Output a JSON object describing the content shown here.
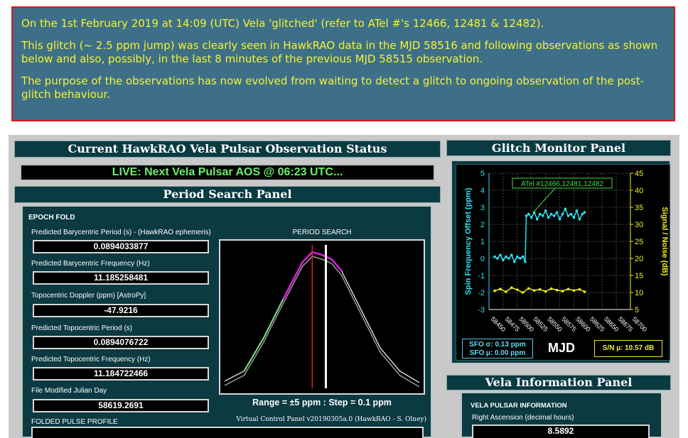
{
  "notice": {
    "line1": "On the 1st February 2019 at 14:09 (UTC) Vela 'glitched' (refer to ATel #'s 12466, 12481 & 12482).",
    "line2": "This glitch (~ 2.5 ppm jump) was clearly seen in HawkRAO data in the MJD 58516 and following observations as shown below and also, possibly, in the last 8 minutes of the previous MJD 58515 observation.",
    "line3": "The purpose of the observations has now evolved from waiting to detect a glitch to ongoing observation of the post-glitch behaviour."
  },
  "status": {
    "title": "Current HawkRAO Vela Pulsar Observation Status",
    "live": "LIVE: Next Vela Pulsar AOS @ 06:23 UTC..."
  },
  "period_panel": {
    "title": "Period Search Panel",
    "epoch_fold": "EPOCH FOLD",
    "fields": [
      {
        "label": "Predicted Barycentric Period (s) - (HawkRAO ephemeris)",
        "value": "0.0894033877"
      },
      {
        "label": "Predicted Barycentric Frequency (Hz)",
        "value": "11.185258481"
      },
      {
        "label": "Topocentric Doppler (ppm) [AstroPy]",
        "value": "-47.9216"
      },
      {
        "label": "Predicted Topocentric Period (s)",
        "value": "0.0894076722"
      },
      {
        "label": "Predicted Topocentric Frequency (Hz)",
        "value": "11.184722466"
      },
      {
        "label": "File Modified Julian Day",
        "value": "58619.2691"
      }
    ],
    "period_search_title": "PERIOD SEARCH",
    "range_text": "Range = ±5 ppm : Step = 0.1 ppm",
    "folded_pulse_profile": "FOLDED PULSE PROFILE",
    "vcp_credit": "Virtual Control Panel v20190305a.0 (HawkRAO - S. Olney)"
  },
  "glitch_panel": {
    "title": "Glitch Monitor Panel",
    "annotation": "ATel #12466,12481,12482",
    "sfo_sigma": "SFO σ: 0.13 ppm",
    "sfo_mu": "SFO µ: 0.00 ppm",
    "xlabel": "MJD",
    "sn_mu": "S/N µ: 10.57 dB"
  },
  "chart_data": {
    "type": "scatter",
    "xlabel": "MJD",
    "ylabel": "Spin Frequency Offset (ppm)",
    "y2label": "Signal / Noise (dB)",
    "xlim": [
      58450,
      58700
    ],
    "ylim": [
      -3,
      5
    ],
    "y2lim": [
      5,
      45
    ],
    "x_ticks": [
      58450,
      58475,
      58500,
      58525,
      58550,
      58575,
      58600,
      58625,
      58650,
      58675,
      58700
    ],
    "y_ticks": [
      -3,
      -2,
      -1,
      0,
      1,
      2,
      3,
      4,
      5
    ],
    "y2_ticks": [
      5,
      10,
      15,
      20,
      25,
      30,
      35,
      40,
      45
    ],
    "grid": true,
    "glitch_mjd": 58515.6,
    "series": [
      {
        "color": "#30e0f0",
        "axis": "left",
        "x": [
          58460,
          58465,
          58470,
          58475,
          58480,
          58485,
          58490,
          58495,
          58500,
          58505,
          58510,
          58514,
          58516,
          58520,
          58525,
          58530,
          58535,
          58540,
          58545,
          58550,
          58555,
          58560,
          58565,
          58570,
          58575,
          58580,
          58585,
          58590,
          58595,
          58600,
          58605,
          58610,
          58615,
          58619
        ],
        "y": [
          0.1,
          0.0,
          0.2,
          -0.1,
          0.1,
          0.0,
          0.2,
          -0.2,
          0.1,
          0.0,
          0.1,
          -0.2,
          2.5,
          2.6,
          2.4,
          2.7,
          2.3,
          2.6,
          2.5,
          2.8,
          2.4,
          2.6,
          2.5,
          2.7,
          2.3,
          2.6,
          2.9,
          2.5,
          2.6,
          2.4,
          2.8,
          2.3,
          2.6,
          2.7
        ]
      },
      {
        "color": "#f0f020",
        "axis": "right",
        "x": [
          58460,
          58470,
          58480,
          58490,
          58500,
          58510,
          58520,
          58530,
          58540,
          58550,
          58560,
          58570,
          58580,
          58590,
          58600,
          58610,
          58619
        ],
        "y": [
          10.5,
          11.0,
          10.2,
          11.4,
          10.8,
          10.0,
          11.2,
          10.6,
          10.9,
          10.3,
          11.1,
          10.7,
          10.4,
          11.0,
          10.6,
          10.9,
          10.2
        ]
      }
    ]
  },
  "vela_panel": {
    "title": "Vela Information Panel",
    "section": "VELA PULSAR INFORMATION",
    "ra_label": "Right Ascension (decimal hours)",
    "ra_value": "8.5892"
  },
  "period_search_data": {
    "type": "line",
    "x": [
      -5,
      -4,
      -3,
      -2,
      -1,
      -0.5,
      0,
      0.5,
      1,
      2,
      3,
      4,
      5
    ],
    "y": [
      0.05,
      0.12,
      0.35,
      0.62,
      0.88,
      0.95,
      0.93,
      0.9,
      0.82,
      0.55,
      0.28,
      0.12,
      0.04
    ]
  }
}
